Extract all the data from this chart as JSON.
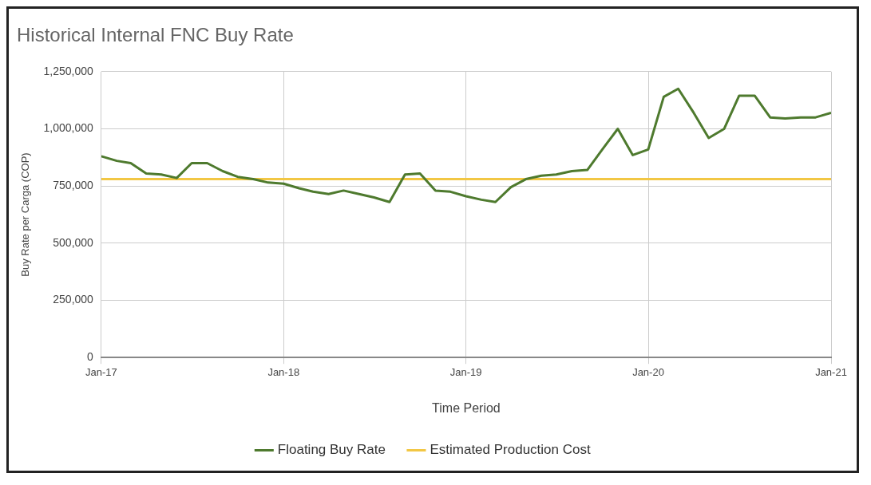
{
  "chart_data": {
    "type": "line",
    "title": "Historical Internal FNC Buy Rate",
    "xlabel": "Time Period",
    "ylabel": "Buy Rate per Carga (COP)",
    "x": [
      "2017-01",
      "2017-02",
      "2017-03",
      "2017-04",
      "2017-05",
      "2017-06",
      "2017-07",
      "2017-08",
      "2017-09",
      "2017-10",
      "2017-11",
      "2017-12",
      "2018-01",
      "2018-02",
      "2018-03",
      "2018-04",
      "2018-05",
      "2018-06",
      "2018-07",
      "2018-08",
      "2018-09",
      "2018-10",
      "2018-11",
      "2018-12",
      "2019-01",
      "2019-02",
      "2019-03",
      "2019-04",
      "2019-05",
      "2019-06",
      "2019-07",
      "2019-08",
      "2019-09",
      "2019-10",
      "2019-11",
      "2019-12",
      "2020-01",
      "2020-02",
      "2020-03",
      "2020-04",
      "2020-05",
      "2020-06",
      "2020-07",
      "2020-08",
      "2020-09",
      "2020-10",
      "2020-11",
      "2020-12",
      "2021-01"
    ],
    "series": [
      {
        "name": "Floating Buy Rate",
        "color": "#4e7a2e",
        "values": [
          880000,
          860000,
          850000,
          805000,
          800000,
          785000,
          850000,
          850000,
          815000,
          790000,
          780000,
          765000,
          760000,
          740000,
          725000,
          715000,
          730000,
          715000,
          700000,
          680000,
          800000,
          805000,
          730000,
          725000,
          705000,
          690000,
          680000,
          745000,
          780000,
          795000,
          800000,
          815000,
          820000,
          910000,
          1000000,
          885000,
          910000,
          1140000,
          1175000,
          1070000,
          960000,
          1000000,
          1145000,
          1145000,
          1050000,
          1045000,
          1050000,
          1050000,
          1070000
        ]
      },
      {
        "name": "Estimated Production Cost",
        "color": "#f2c744",
        "x": [
          "2017-01",
          "2021-01"
        ],
        "values": [
          780000,
          780000
        ]
      }
    ],
    "xlim": [
      "2017-01",
      "2021-01"
    ],
    "xticks": [
      {
        "value": "2017-01",
        "label": "Jan-17"
      },
      {
        "value": "2018-01",
        "label": "Jan-18"
      },
      {
        "value": "2019-01",
        "label": "Jan-19"
      },
      {
        "value": "2020-01",
        "label": "Jan-20"
      },
      {
        "value": "2021-01",
        "label": "Jan-21"
      }
    ],
    "ylim": [
      0,
      1250000
    ],
    "yticks": [
      {
        "value": 0,
        "label": "0"
      },
      {
        "value": 250000,
        "label": "250,000"
      },
      {
        "value": 500000,
        "label": "500,000"
      },
      {
        "value": 750000,
        "label": "750,000"
      },
      {
        "value": 1000000,
        "label": "1,000,000"
      },
      {
        "value": 1250000,
        "label": "1,250,000"
      }
    ],
    "grid": true,
    "legend": "bottom",
    "marker": "none",
    "line_style": "solid"
  }
}
